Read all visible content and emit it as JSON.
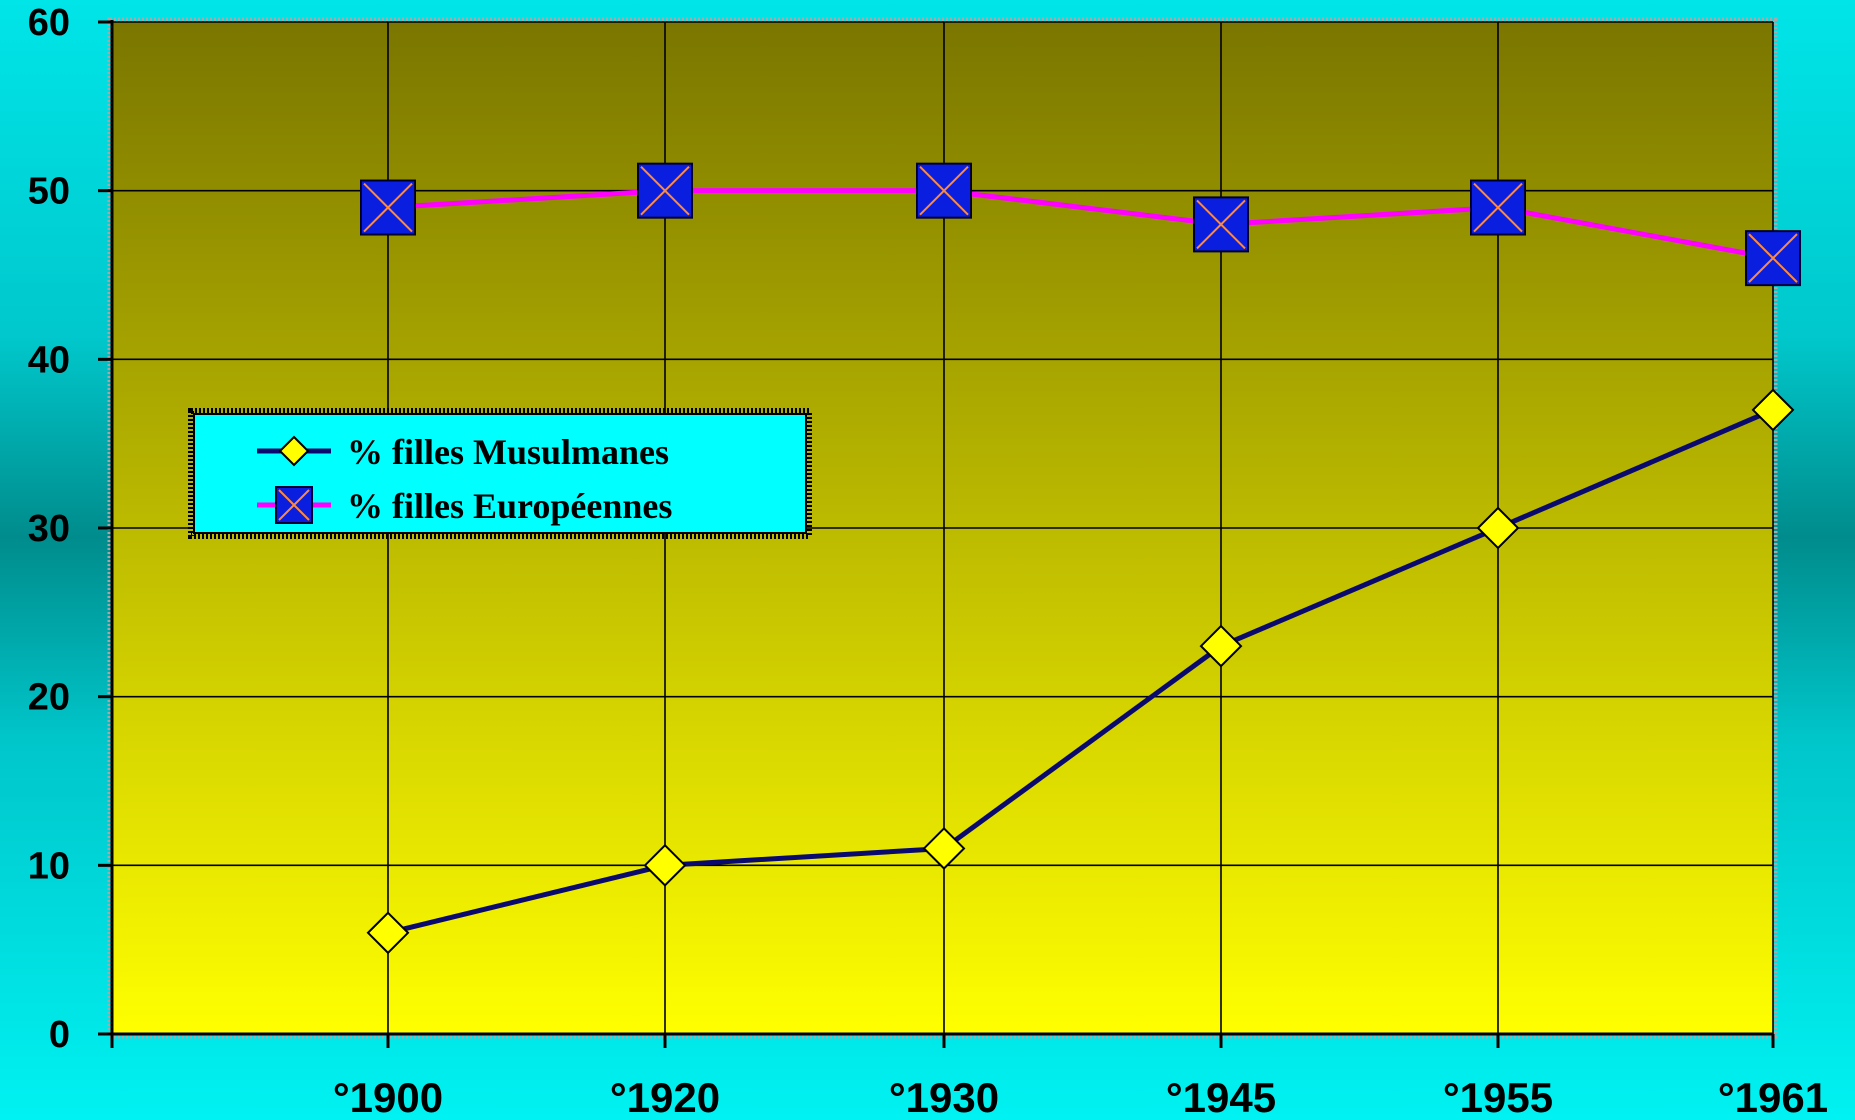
{
  "chart_data": {
    "type": "line",
    "categories": [
      "°1900",
      "°1920",
      "°1930",
      "°1945",
      "°1955",
      "°1961"
    ],
    "series": [
      {
        "name": "% filles Musulmanes",
        "values": [
          6,
          10,
          11,
          23,
          30,
          37
        ],
        "color": "#0a0a6e",
        "marker": "diamond",
        "marker_color": "#ffff00"
      },
      {
        "name": "% filles Européennes",
        "values": [
          49,
          50,
          50,
          48,
          49,
          46
        ],
        "color": "#ff00ff",
        "marker": "square-x",
        "marker_color": "#0a1ee0",
        "marker_cross_color": "#ff8a3c"
      }
    ],
    "ylim": [
      0,
      60
    ],
    "yticks": [
      0,
      10,
      20,
      30,
      40,
      50,
      60
    ],
    "grid": true,
    "legend_position": "upper-left",
    "plot_background": [
      "#7a7600",
      "#ffff00"
    ],
    "page_background": "#00e5e8"
  }
}
